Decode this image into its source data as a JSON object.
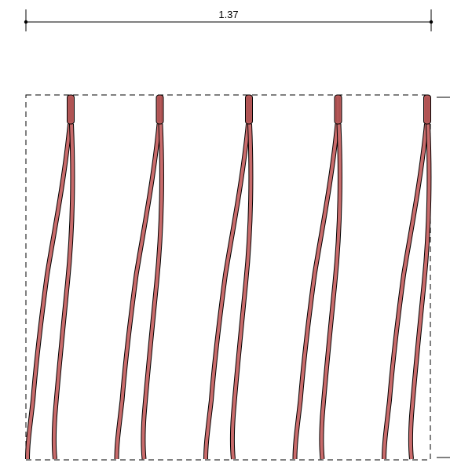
{
  "dimension": {
    "label": "1.37"
  },
  "colors": {
    "line": "#000000",
    "strand_fill": "#c96b6b",
    "cap_fill": "#b85a5a",
    "background": "#ffffff"
  },
  "strands": {
    "count": 5
  },
  "right_edge_text": {
    "label": ""
  }
}
